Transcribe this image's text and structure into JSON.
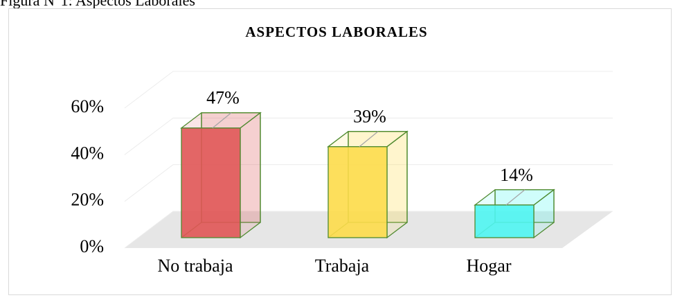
{
  "caption": "Figura N°1: Aspectos Laborales",
  "chart_data": {
    "type": "bar3d",
    "title": "ASPECTOS LABORALES",
    "categories": [
      "No trabaja",
      "Trabaja",
      "Hogar"
    ],
    "values": [
      47,
      39,
      14
    ],
    "value_labels": [
      "47%",
      "39%",
      "14%"
    ],
    "colors": [
      "#e05555",
      "#fddc4a",
      "#4ff5f2"
    ],
    "ylim": [
      0,
      60
    ],
    "yticks": [
      {
        "value": 0,
        "label": "0%"
      },
      {
        "value": 20,
        "label": "20%"
      },
      {
        "value": 40,
        "label": "40%"
      },
      {
        "value": 60,
        "label": "60%"
      }
    ],
    "grid": true
  }
}
